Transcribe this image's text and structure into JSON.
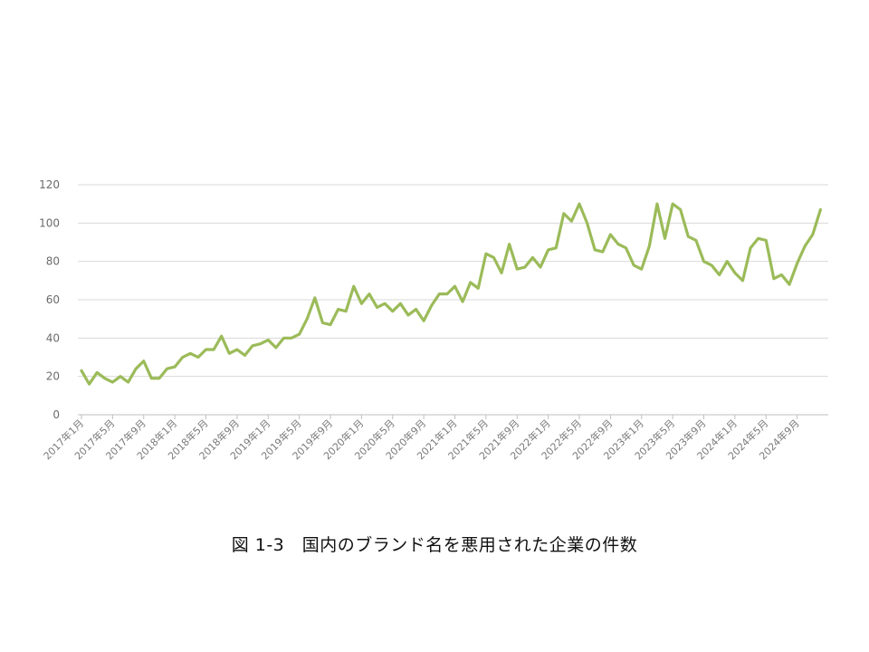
{
  "caption": "図 1-3　国内のブランド名を悪用された企業の件数",
  "colors": {
    "series": "#9bbb59",
    "grid": "#d9d9d9",
    "axis_text": "#6b6b6b"
  },
  "chart_data": {
    "type": "line",
    "title": "図 1-3　国内のブランド名を悪用された企業の件数",
    "xlabel": "",
    "ylabel": "",
    "ylim": [
      0,
      120
    ],
    "yticks": [
      0,
      20,
      40,
      60,
      80,
      100,
      120
    ],
    "grid": true,
    "legend": "none",
    "x": [
      "2017年1月",
      "2017年2月",
      "2017年3月",
      "2017年4月",
      "2017年5月",
      "2017年6月",
      "2017年7月",
      "2017年8月",
      "2017年9月",
      "2017年10月",
      "2017年11月",
      "2017年12月",
      "2018年1月",
      "2018年2月",
      "2018年3月",
      "2018年4月",
      "2018年5月",
      "2018年6月",
      "2018年7月",
      "2018年8月",
      "2018年9月",
      "2018年10月",
      "2018年11月",
      "2018年12月",
      "2019年1月",
      "2019年2月",
      "2019年3月",
      "2019年4月",
      "2019年5月",
      "2019年6月",
      "2019年7月",
      "2019年8月",
      "2019年9月",
      "2019年10月",
      "2019年11月",
      "2019年12月",
      "2020年1月",
      "2020年2月",
      "2020年3月",
      "2020年4月",
      "2020年5月",
      "2020年6月",
      "2020年7月",
      "2020年8月",
      "2020年9月",
      "2020年10月",
      "2020年11月",
      "2020年12月",
      "2021年1月",
      "2021年2月",
      "2021年3月",
      "2021年4月",
      "2021年5月",
      "2021年6月",
      "2021年7月",
      "2021年8月",
      "2021年9月",
      "2021年10月",
      "2021年11月",
      "2021年12月",
      "2022年1月",
      "2022年2月",
      "2022年3月",
      "2022年4月",
      "2022年5月",
      "2022年6月",
      "2022年7月",
      "2022年8月",
      "2022年9月",
      "2022年10月",
      "2022年11月",
      "2022年12月",
      "2023年1月",
      "2023年2月",
      "2023年3月",
      "2023年4月",
      "2023年5月",
      "2023年6月",
      "2023年7月",
      "2023年8月",
      "2023年9月",
      "2023年10月",
      "2023年11月",
      "2023年12月",
      "2024年1月",
      "2024年2月",
      "2024年3月",
      "2024年4月",
      "2024年5月",
      "2024年6月",
      "2024年7月",
      "2024年8月",
      "2024年9月",
      "2024年10月",
      "2024年11月",
      "2024年12月"
    ],
    "tick_labels": [
      "2017年1月",
      "2017年5月",
      "2017年9月",
      "2018年1月",
      "2018年5月",
      "2018年9月",
      "2019年1月",
      "2019年5月",
      "2019年9月",
      "2020年1月",
      "2020年5月",
      "2020年9月",
      "2021年1月",
      "2021年5月",
      "2021年9月",
      "2022年1月",
      "2022年5月",
      "2022年9月",
      "2023年1月",
      "2023年5月",
      "2023年9月",
      "2024年1月",
      "2024年5月",
      "2024年9月"
    ],
    "series": [
      {
        "values": [
          23,
          16,
          22,
          19,
          17,
          20,
          17,
          24,
          28,
          19,
          19,
          24,
          25,
          30,
          32,
          30,
          34,
          34,
          41,
          32,
          34,
          31,
          36,
          37,
          39,
          35,
          40,
          40,
          42,
          50,
          61,
          48,
          47,
          55,
          54,
          67,
          58,
          63,
          56,
          58,
          54,
          58,
          52,
          55,
          49,
          57,
          63,
          63,
          67,
          59,
          69,
          66,
          84,
          82,
          74,
          89,
          76,
          77,
          82,
          77,
          86,
          87,
          105,
          101,
          110,
          100,
          86,
          85,
          94,
          89,
          87,
          78,
          76,
          88,
          110,
          92,
          110,
          107,
          93,
          91,
          80,
          78,
          73,
          80,
          74,
          70,
          87,
          92,
          91,
          71,
          73,
          68,
          79,
          88,
          94,
          107
        ]
      }
    ]
  }
}
